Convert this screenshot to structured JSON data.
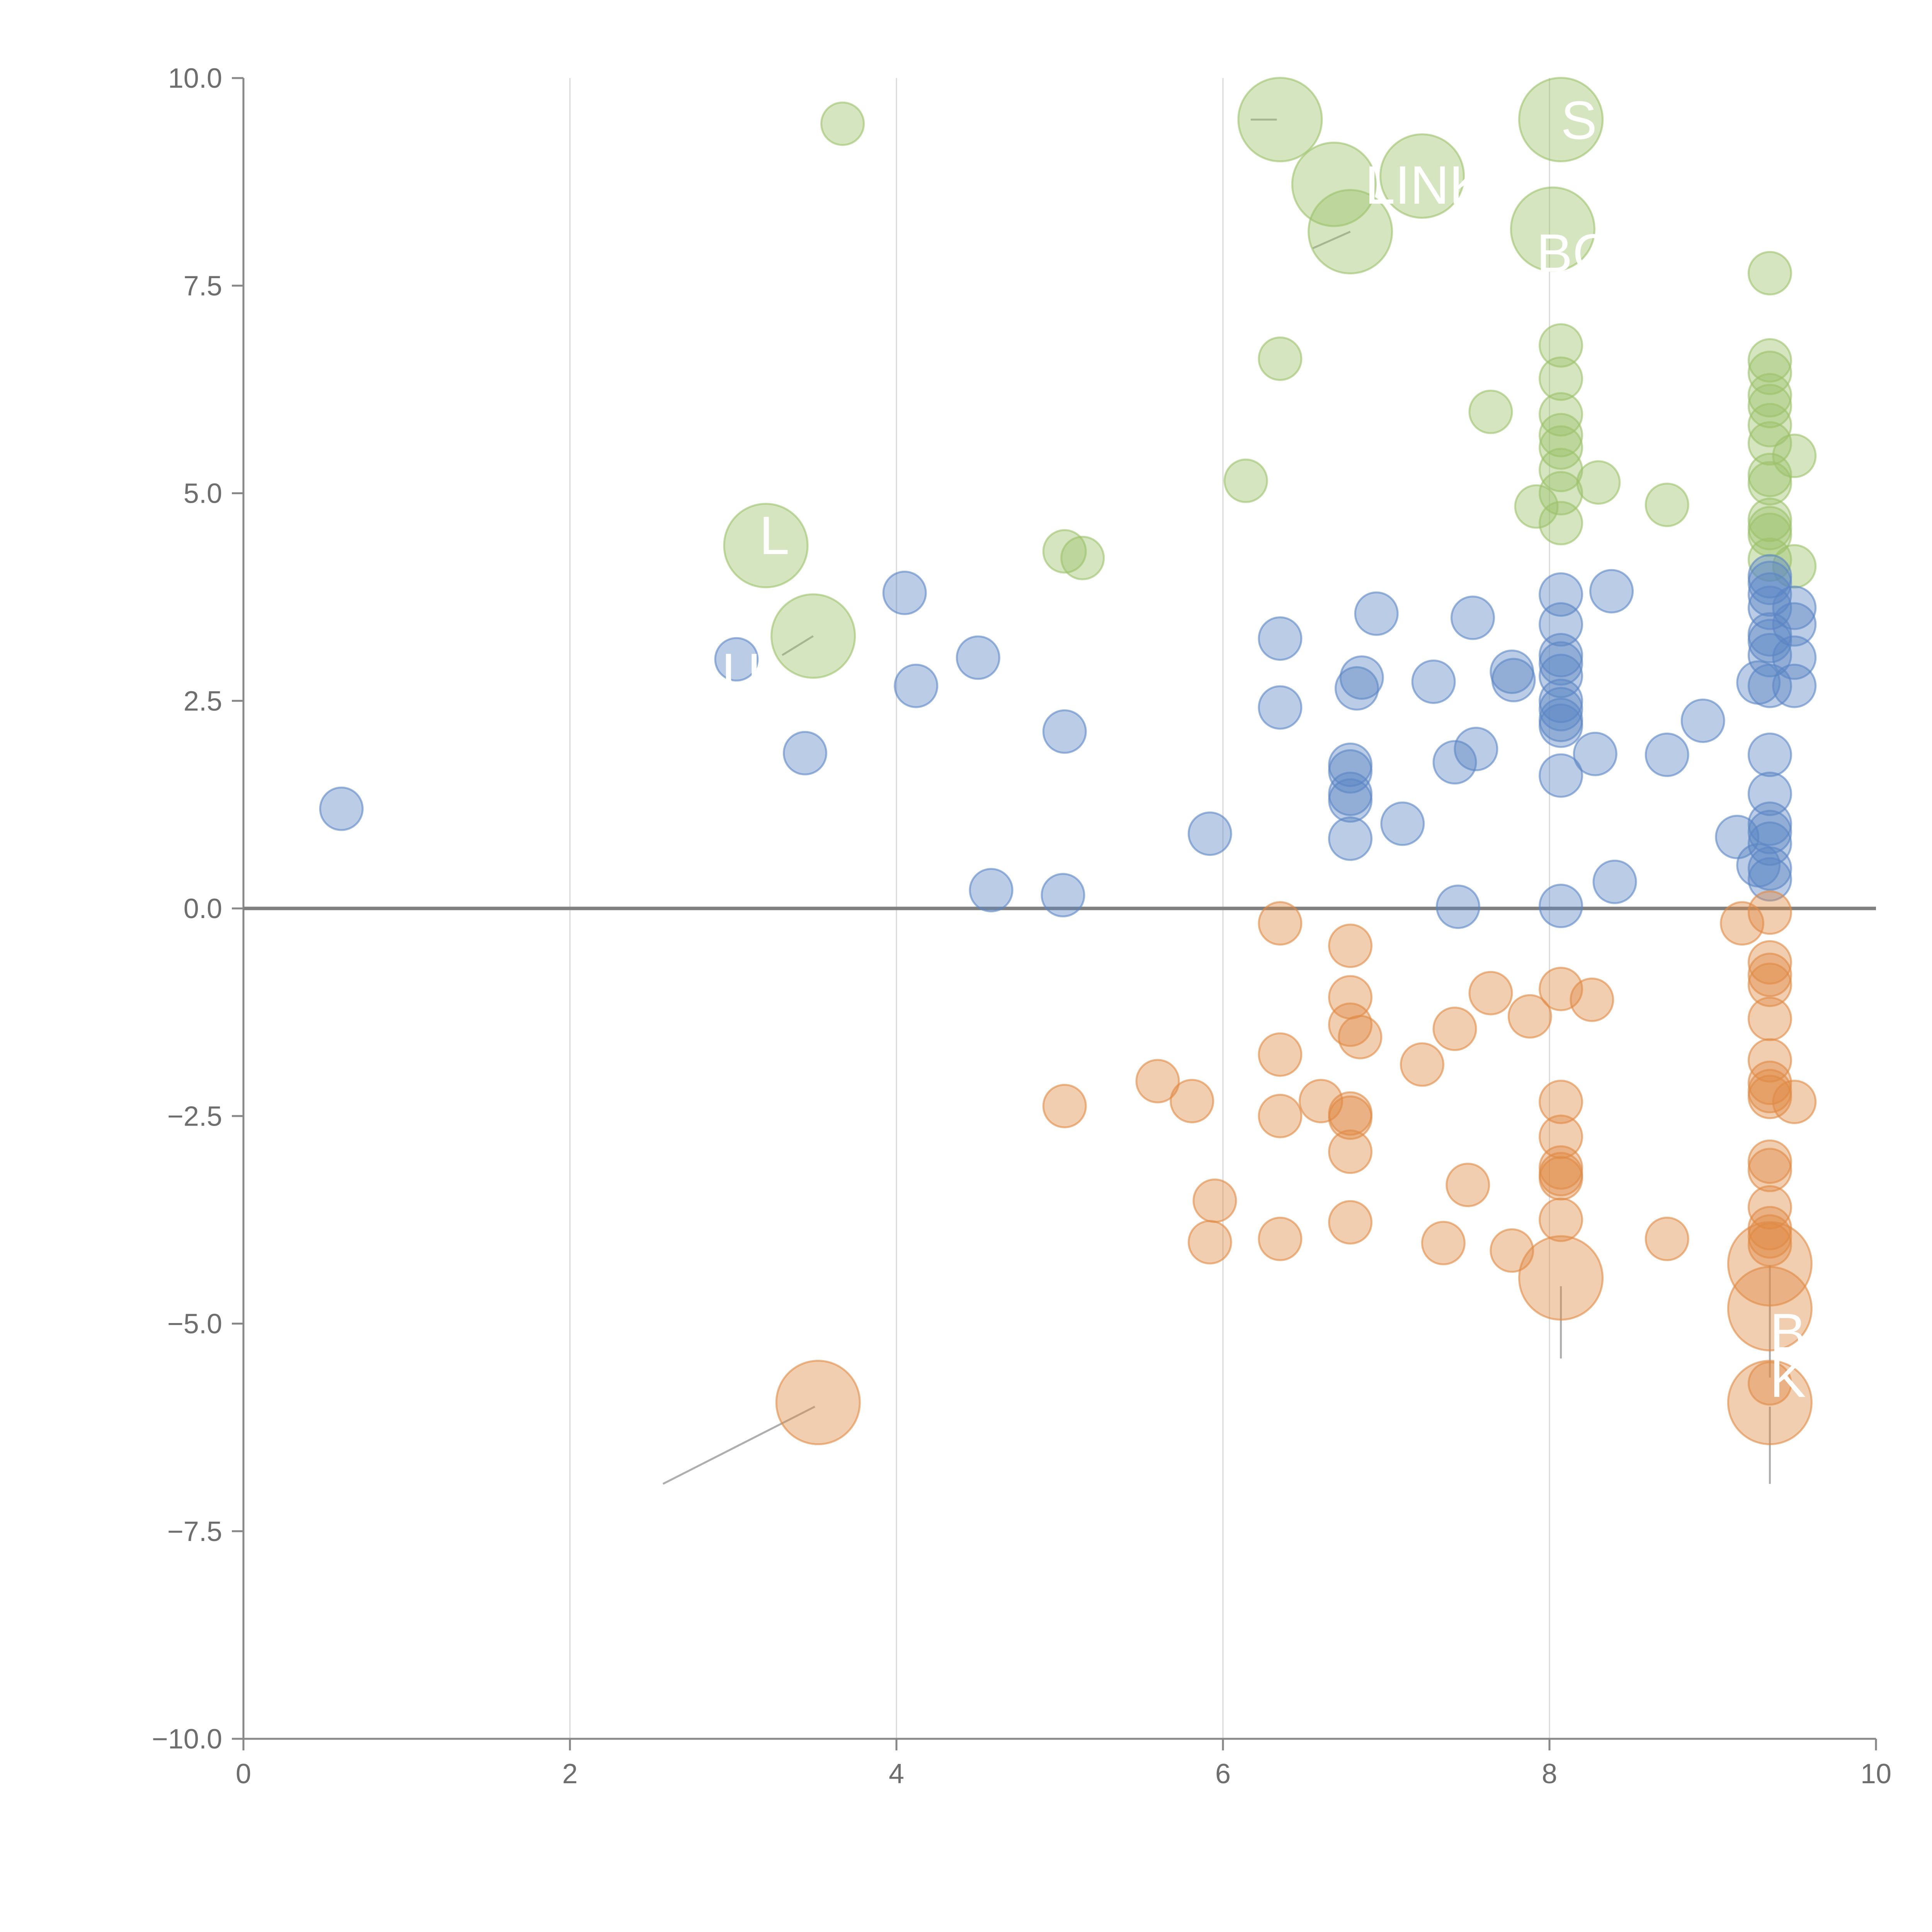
{
  "chart_data": {
    "type": "scatter",
    "title": "",
    "xlabel": "",
    "ylabel": "",
    "xlim": [
      0,
      10
    ],
    "ylim": [
      -10,
      10
    ],
    "grid": {
      "x": true,
      "y": false
    },
    "zero_line": 0,
    "x_ticks": [
      0,
      2,
      4,
      6,
      8,
      10
    ],
    "x_tick_labels": [
      "0",
      "2",
      "4",
      "6",
      "8",
      "10"
    ],
    "y_ticks": [
      10,
      7.5,
      5,
      2.5,
      0,
      -2.5,
      -5,
      -7.5,
      -10
    ],
    "y_tick_labels": [
      "10.0",
      "7.5",
      "5.0",
      "2.5",
      "0.0",
      "−2.5",
      "−5.0",
      "−7.5",
      "−10.0"
    ],
    "colors": {
      "green": "#9cc26a",
      "blue": "#5b86c4",
      "orange": "#e08a45",
      "text": "#6e6e6e"
    },
    "series": [
      {
        "name": "green",
        "color": "#9cc26a",
        "points": [
          [
            3.67,
            9.45,
            1
          ],
          [
            6.35,
            9.5,
            3
          ],
          [
            6.68,
            8.72,
            3
          ],
          [
            7.22,
            8.82,
            3
          ],
          [
            6.78,
            8.15,
            3
          ],
          [
            8.07,
            9.5,
            3
          ],
          [
            8.02,
            8.18,
            3
          ],
          [
            9.35,
            7.65,
            1
          ],
          [
            6.35,
            6.62,
            1
          ],
          [
            8.07,
            6.78,
            1
          ],
          [
            7.64,
            5.98,
            1
          ],
          [
            8.07,
            6.38,
            1
          ],
          [
            8.07,
            5.95,
            1
          ],
          [
            8.07,
            5.7,
            1
          ],
          [
            8.07,
            5.55,
            1
          ],
          [
            8.07,
            5.28,
            1
          ],
          [
            8.07,
            5.0,
            1
          ],
          [
            6.14,
            5.15,
            1
          ],
          [
            8.3,
            5.13,
            1
          ],
          [
            7.92,
            4.84,
            1
          ],
          [
            8.72,
            4.86,
            1
          ],
          [
            8.07,
            4.64,
            1
          ],
          [
            5.03,
            4.3,
            1
          ],
          [
            5.14,
            4.22,
            1
          ],
          [
            3.2,
            4.37,
            3
          ],
          [
            3.49,
            3.28,
            3
          ],
          [
            9.35,
            6.6,
            1
          ],
          [
            9.35,
            6.45,
            1
          ],
          [
            9.35,
            6.18,
            1
          ],
          [
            9.35,
            6.05,
            1
          ],
          [
            9.35,
            5.82,
            1
          ],
          [
            9.35,
            5.6,
            1
          ],
          [
            9.35,
            5.22,
            1
          ],
          [
            9.35,
            5.12,
            1
          ],
          [
            9.35,
            4.68,
            1
          ],
          [
            9.35,
            4.58,
            1
          ],
          [
            9.35,
            4.5,
            1
          ],
          [
            9.35,
            4.2,
            1
          ],
          [
            9.5,
            5.45,
            1
          ],
          [
            9.5,
            4.12,
            1
          ]
        ]
      },
      {
        "name": "blue",
        "color": "#5b86c4",
        "points": [
          [
            0.6,
            1.2,
            1
          ],
          [
            3.02,
            3.0,
            1
          ],
          [
            3.44,
            1.87,
            1
          ],
          [
            4.05,
            3.8,
            1
          ],
          [
            4.12,
            2.68,
            1
          ],
          [
            4.5,
            3.02,
            1
          ],
          [
            4.58,
            0.22,
            1
          ],
          [
            5.03,
            2.13,
            1
          ],
          [
            5.02,
            0.16,
            1
          ],
          [
            5.92,
            0.9,
            1
          ],
          [
            6.35,
            3.25,
            1
          ],
          [
            6.35,
            2.42,
            1
          ],
          [
            6.78,
            1.73,
            1
          ],
          [
            6.78,
            1.65,
            1
          ],
          [
            6.78,
            1.38,
            1
          ],
          [
            6.78,
            1.3,
            1
          ],
          [
            6.78,
            0.84,
            1
          ],
          [
            6.94,
            3.55,
            1
          ],
          [
            6.85,
            2.78,
            1
          ],
          [
            6.82,
            2.65,
            1
          ],
          [
            7.1,
            1.02,
            1
          ],
          [
            7.29,
            2.73,
            1
          ],
          [
            7.42,
            1.76,
            1
          ],
          [
            7.55,
            1.92,
            1
          ],
          [
            7.53,
            3.5,
            1
          ],
          [
            7.44,
            0.02,
            1
          ],
          [
            7.77,
            2.85,
            1
          ],
          [
            7.78,
            2.75,
            1
          ],
          [
            8.07,
            3.78,
            1
          ],
          [
            8.07,
            3.42,
            1
          ],
          [
            8.07,
            3.05,
            1
          ],
          [
            8.07,
            2.95,
            1
          ],
          [
            8.07,
            2.8,
            1
          ],
          [
            8.07,
            2.5,
            1
          ],
          [
            8.07,
            2.4,
            1
          ],
          [
            8.07,
            2.27,
            1
          ],
          [
            8.07,
            2.2,
            1
          ],
          [
            8.07,
            1.6,
            1
          ],
          [
            8.07,
            0.03,
            1
          ],
          [
            8.28,
            1.86,
            1
          ],
          [
            8.38,
            3.82,
            1
          ],
          [
            8.4,
            0.32,
            1
          ],
          [
            8.72,
            1.85,
            1
          ],
          [
            8.94,
            2.26,
            1
          ],
          [
            9.15,
            0.86,
            1
          ],
          [
            9.28,
            0.52,
            1
          ],
          [
            9.28,
            2.72,
            1
          ],
          [
            9.35,
            4.0,
            1
          ],
          [
            9.35,
            3.92,
            1
          ],
          [
            9.35,
            3.78,
            1
          ],
          [
            9.35,
            3.62,
            1
          ],
          [
            9.35,
            3.3,
            1
          ],
          [
            9.35,
            3.22,
            1
          ],
          [
            9.35,
            3.05,
            1
          ],
          [
            9.35,
            2.68,
            1
          ],
          [
            9.35,
            1.85,
            1
          ],
          [
            9.35,
            1.38,
            1
          ],
          [
            9.35,
            1.02,
            1
          ],
          [
            9.35,
            0.92,
            1
          ],
          [
            9.35,
            0.78,
            1
          ],
          [
            9.35,
            0.48,
            1
          ],
          [
            9.35,
            0.35,
            1
          ],
          [
            9.5,
            3.62,
            1
          ],
          [
            9.5,
            3.42,
            1
          ],
          [
            9.5,
            3.02,
            1
          ],
          [
            9.5,
            2.68,
            1
          ]
        ]
      },
      {
        "name": "orange",
        "color": "#e08a45",
        "points": [
          [
            6.35,
            -0.18,
            1
          ],
          [
            6.78,
            -0.45,
            1
          ],
          [
            6.78,
            -1.07,
            1
          ],
          [
            6.78,
            -1.4,
            1
          ],
          [
            6.84,
            -1.55,
            1
          ],
          [
            6.35,
            -1.76,
            1
          ],
          [
            7.22,
            -1.88,
            1
          ],
          [
            7.42,
            -1.45,
            1
          ],
          [
            7.64,
            -1.02,
            1
          ],
          [
            7.88,
            -1.3,
            1
          ],
          [
            8.07,
            -0.97,
            1
          ],
          [
            8.26,
            -1.1,
            1
          ],
          [
            5.6,
            -2.08,
            1
          ],
          [
            5.81,
            -2.32,
            1
          ],
          [
            5.03,
            -2.38,
            1
          ],
          [
            6.35,
            -2.5,
            1
          ],
          [
            6.6,
            -2.32,
            1
          ],
          [
            6.78,
            -2.47,
            1
          ],
          [
            6.78,
            -2.52,
            1
          ],
          [
            6.78,
            -2.93,
            1
          ],
          [
            8.07,
            -2.33,
            1
          ],
          [
            8.07,
            -2.75,
            1
          ],
          [
            8.07,
            -3.12,
            1
          ],
          [
            8.07,
            -3.2,
            1
          ],
          [
            8.07,
            -3.25,
            1
          ],
          [
            5.95,
            -3.52,
            1
          ],
          [
            5.92,
            -4.02,
            1
          ],
          [
            6.35,
            -3.98,
            1
          ],
          [
            6.78,
            -3.78,
            1
          ],
          [
            7.35,
            -4.03,
            1
          ],
          [
            7.5,
            -3.33,
            1
          ],
          [
            7.77,
            -4.12,
            1
          ],
          [
            8.07,
            -3.75,
            1
          ],
          [
            8.72,
            -3.98,
            1
          ],
          [
            8.07,
            -4.45,
            3
          ],
          [
            3.52,
            -5.95,
            3
          ],
          [
            9.18,
            -0.18,
            1
          ],
          [
            9.35,
            -0.05,
            1
          ],
          [
            9.35,
            -0.65,
            1
          ],
          [
            9.35,
            -0.8,
            1
          ],
          [
            9.35,
            -0.92,
            1
          ],
          [
            9.35,
            -1.33,
            1
          ],
          [
            9.35,
            -1.83,
            1
          ],
          [
            9.35,
            -2.1,
            1
          ],
          [
            9.35,
            -2.2,
            1
          ],
          [
            9.35,
            -2.27,
            1
          ],
          [
            9.5,
            -2.33,
            1
          ],
          [
            9.35,
            -3.05,
            1
          ],
          [
            9.35,
            -3.15,
            1
          ],
          [
            9.35,
            -3.6,
            1
          ],
          [
            9.35,
            -3.85,
            1
          ],
          [
            9.35,
            -3.95,
            1
          ],
          [
            9.35,
            -4.05,
            1
          ],
          [
            9.35,
            -4.28,
            3
          ],
          [
            9.35,
            -4.82,
            3
          ],
          [
            9.35,
            -5.72,
            1
          ],
          [
            9.35,
            -5.95,
            3
          ]
        ]
      }
    ],
    "annotations": [
      {
        "text": "S",
        "x": 8.07,
        "y": 9.5
      },
      {
        "text": "LINK",
        "x": 6.87,
        "y": 8.72
      },
      {
        "text": "BC",
        "x": 7.92,
        "y": 7.9
      },
      {
        "text": "L",
        "x": 3.16,
        "y": 4.5
      },
      {
        "text": "U",
        "x": 2.93,
        "y": 2.85
      },
      {
        "text": "B",
        "x": 9.35,
        "y": -5.1
      },
      {
        "text": "K",
        "x": 9.35,
        "y": -5.65
      }
    ],
    "leader_lines": [
      {
        "x1": 3.5,
        "y1": -6.0,
        "x2": 2.57,
        "y2": -6.93
      },
      {
        "x1": 8.07,
        "y1": -4.55,
        "x2": 8.07,
        "y2": -5.42
      },
      {
        "x1": 9.35,
        "y1": -6.0,
        "x2": 9.35,
        "y2": -6.93
      },
      {
        "x1": 9.35,
        "y1": -4.3,
        "x2": 9.35,
        "y2": -5.65
      },
      {
        "x1": 6.33,
        "y1": 9.5,
        "x2": 6.17,
        "y2": 9.5
      },
      {
        "x1": 6.78,
        "y1": 8.15,
        "x2": 6.55,
        "y2": 7.95
      },
      {
        "x1": 3.49,
        "y1": 3.28,
        "x2": 3.3,
        "y2": 3.05
      }
    ]
  }
}
